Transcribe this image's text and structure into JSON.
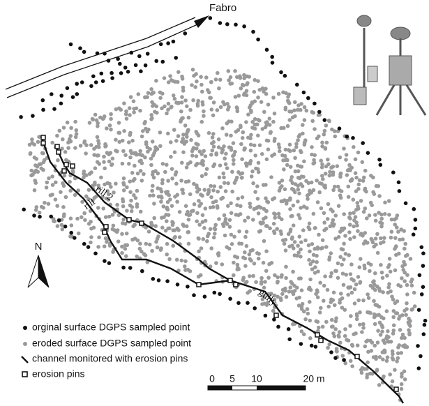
{
  "map": {
    "labels": {
      "town": "Fabro",
      "rill_1": "rill",
      "rill_2": "rill 2",
      "gully": "gully",
      "north": "N"
    },
    "legend": [
      "orginal surface DGPS sampled point",
      "eroded surface DGPS sampled point",
      "channel monitored with erosion pins",
      "erosion pins"
    ],
    "scale_bar": {
      "ticks": [
        "0",
        "5",
        "10",
        "20 m"
      ]
    }
  }
}
